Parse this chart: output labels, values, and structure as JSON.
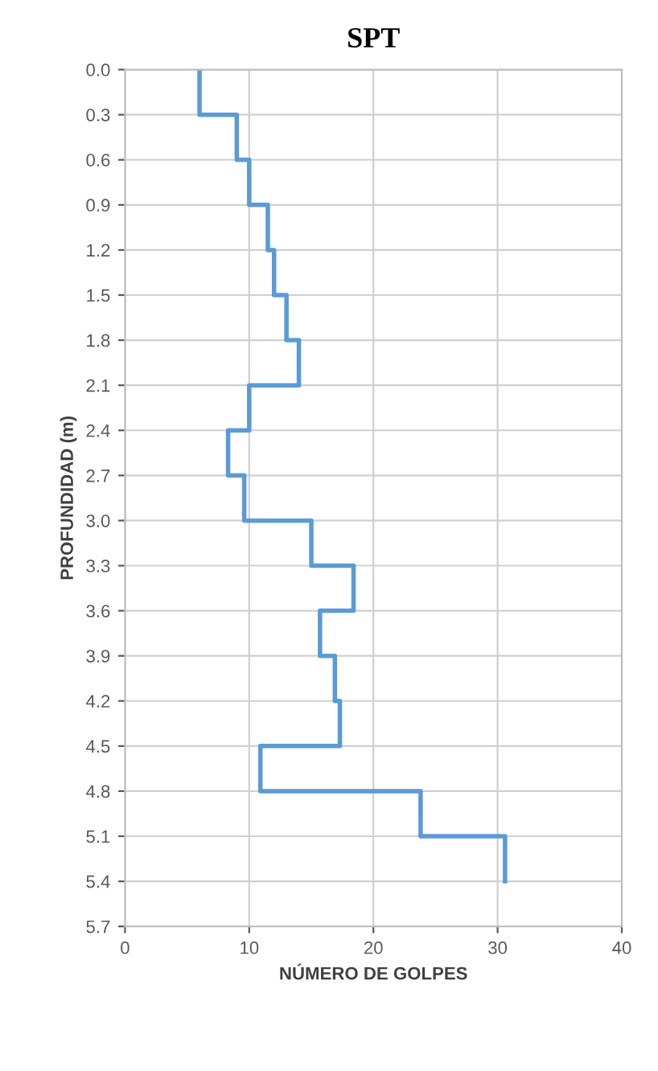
{
  "chart_data": {
    "type": "step",
    "orientation": "horizontal",
    "title": "SPT",
    "xlabel": "NÚMERO DE GOLPES",
    "ylabel": "PROFUNDIDAD (m)",
    "x": [
      0.0,
      0.3,
      0.6,
      0.9,
      1.2,
      1.5,
      1.8,
      2.1,
      2.4,
      2.7,
      3.0,
      3.3,
      3.6,
      3.9,
      4.2,
      4.5,
      4.8,
      5.1,
      5.4
    ],
    "series": [
      {
        "color": "#5b9bd5",
        "values": [
          6,
          9,
          10,
          11.5,
          12,
          13,
          14,
          10,
          8.3,
          9.6,
          15,
          18.4,
          15.7,
          16.9,
          17.3,
          10.9,
          23.8,
          30.6,
          30.6
        ]
      }
    ],
    "xlim": [
      0,
      40
    ],
    "xticks": [
      0,
      10,
      20,
      30,
      40
    ],
    "ylim": [
      5.7,
      0
    ],
    "yticks": [
      {
        "value": 0,
        "label": "0.0"
      },
      {
        "value": 0.3,
        "label": "0.3"
      },
      {
        "value": 0.6,
        "label": "0.6"
      },
      {
        "value": 0.9,
        "label": "0.9"
      },
      {
        "value": 1.2,
        "label": "1.2"
      },
      {
        "value": 1.5,
        "label": "1.5"
      },
      {
        "value": 1.8,
        "label": "1.8"
      },
      {
        "value": 2.1,
        "label": "2.1"
      },
      {
        "value": 2.4,
        "label": "2.4"
      },
      {
        "value": 2.7,
        "label": "2.7"
      },
      {
        "value": 3.0,
        "label": "3.0"
      },
      {
        "value": 3.3,
        "label": "3.3"
      },
      {
        "value": 3.6,
        "label": "3.6"
      },
      {
        "value": 3.9,
        "label": "3.9"
      },
      {
        "value": 4.2,
        "label": "4.2"
      },
      {
        "value": 4.5,
        "label": "4.5"
      },
      {
        "value": 4.8,
        "label": "4.8"
      },
      {
        "value": 5.1,
        "label": "5.1"
      },
      {
        "value": 5.4,
        "label": "5.4"
      },
      {
        "value": 5.7,
        "label": "5.7"
      }
    ],
    "grid": true,
    "legend": false
  }
}
